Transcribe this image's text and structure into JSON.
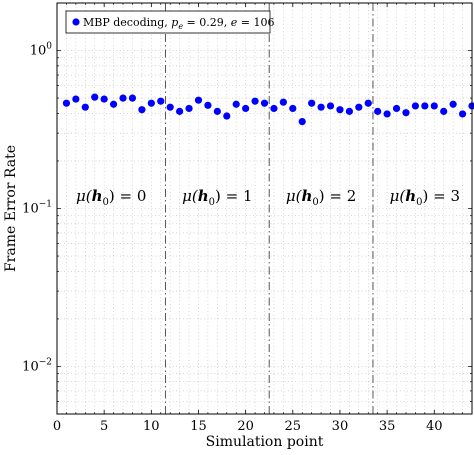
{
  "chart_data": {
    "type": "scatter",
    "xlabel": "Simulation point",
    "ylabel": "Frame Error Rate",
    "xlim": [
      0,
      44
    ],
    "ylim": [
      0.005,
      2
    ],
    "y_scale": "log",
    "grid": true,
    "legend_position": "top-left",
    "x_ticks": [
      0,
      5,
      10,
      15,
      20,
      25,
      30,
      35,
      40
    ],
    "x_tick_labels": [
      "0",
      "5",
      "10",
      "15",
      "20",
      "25",
      "30",
      "35",
      "40"
    ],
    "y_ticks": [
      0.01,
      0.1,
      1
    ],
    "y_tick_labels": [
      {
        "base": "10",
        "exp": "−2"
      },
      {
        "base": "10",
        "exp": "−1"
      },
      {
        "base": "10",
        "exp": "0"
      }
    ],
    "series": [
      {
        "name": "MBP decoding, p_e = 0.29, e = 106",
        "color": "#0000ff",
        "x": [
          1,
          2,
          3,
          4,
          5,
          6,
          7,
          8,
          9,
          10,
          11,
          12,
          13,
          14,
          15,
          16,
          17,
          18,
          19,
          20,
          21,
          22,
          23,
          24,
          25,
          26,
          27,
          28,
          29,
          30,
          31,
          32,
          33,
          34,
          35,
          36,
          37,
          38,
          39,
          40,
          41,
          42,
          43,
          44
        ],
        "y": [
          0.464,
          0.493,
          0.438,
          0.507,
          0.493,
          0.457,
          0.5,
          0.5,
          0.422,
          0.464,
          0.478,
          0.438,
          0.412,
          0.43,
          0.485,
          0.45,
          0.412,
          0.385,
          0.457,
          0.43,
          0.478,
          0.464,
          0.43,
          0.471,
          0.43,
          0.355,
          0.464,
          0.438,
          0.446,
          0.422,
          0.412,
          0.438,
          0.464,
          0.412,
          0.397,
          0.43,
          0.404,
          0.446,
          0.446,
          0.446,
          0.412,
          0.457,
          0.397,
          0.446
        ]
      }
    ],
    "legend": {
      "label": "MBP decoding, ",
      "pe": "p",
      "pe_sub": "e",
      "pe_val": " = 0.29, ",
      "e_sym": "e",
      "e_val": " = 106"
    },
    "dividers": [
      11.5,
      22.5,
      33.5
    ],
    "regions": [
      {
        "x": 5.75,
        "mu": "μ(",
        "h": "h",
        "sub": "0",
        "rest": ") = 0"
      },
      {
        "x": 17,
        "mu": "μ(",
        "h": "h",
        "sub": "0",
        "rest": ") = 1"
      },
      {
        "x": 28,
        "mu": "μ(",
        "h": "h",
        "sub": "0",
        "rest": ") = 2"
      },
      {
        "x": 39,
        "mu": "μ(",
        "h": "h",
        "sub": "0",
        "rest": ") = 3"
      }
    ],
    "region_label_y": 0.12
  }
}
